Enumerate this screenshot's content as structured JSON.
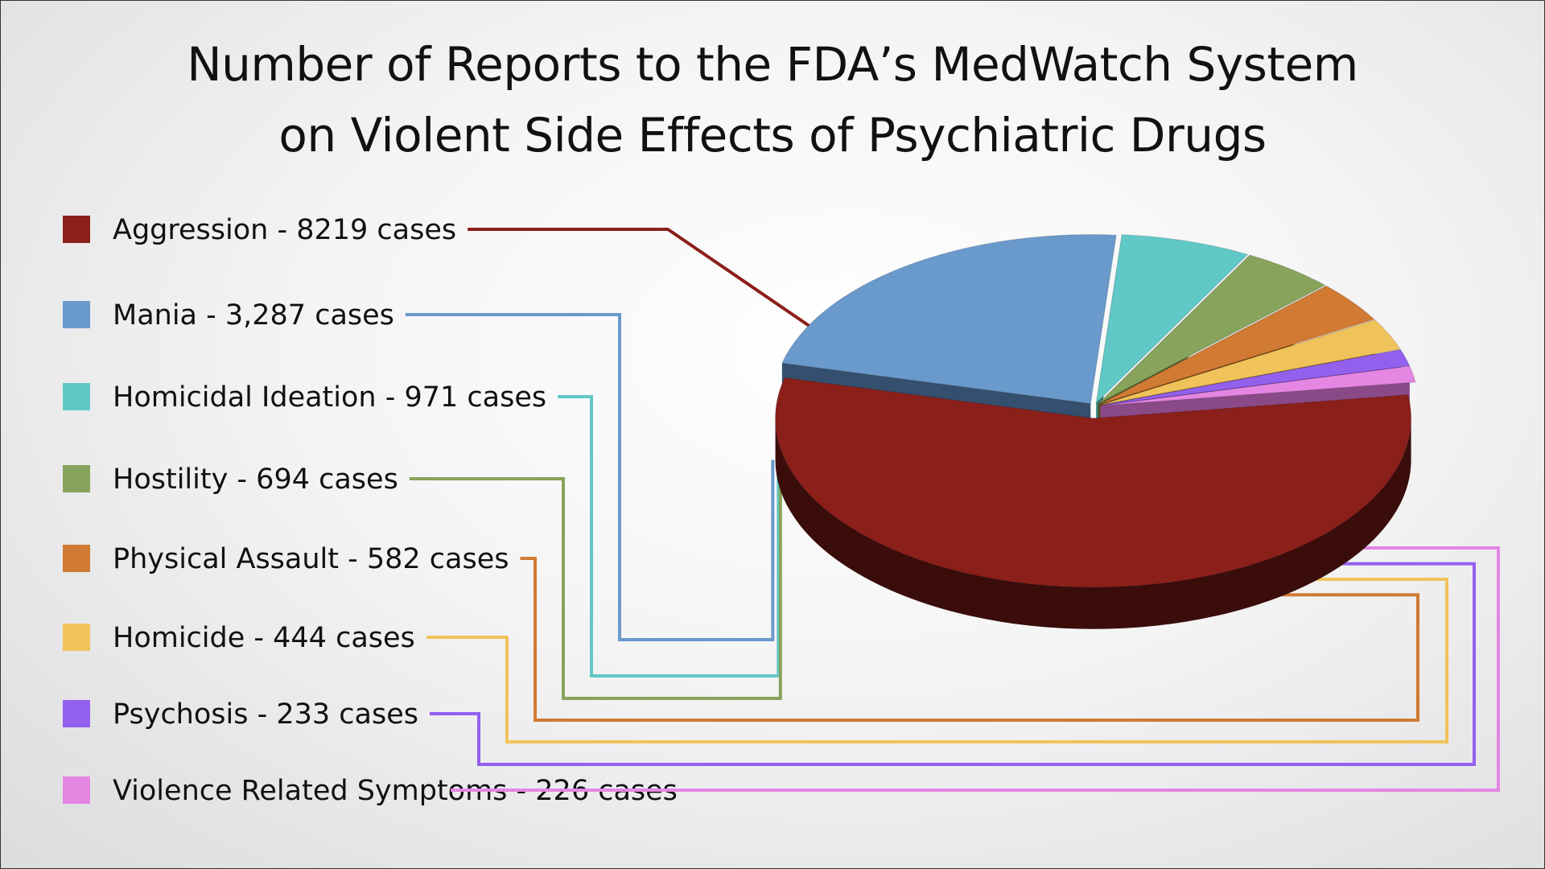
{
  "title_lines": [
    "Number of Reports to the FDA’s MedWatch System",
    "on Violent Side Effects of Psychiatric Drugs"
  ],
  "chart_data": {
    "type": "pie",
    "title": "Number of Reports to the FDA’s MedWatch System on Violent Side Effects of Psychiatric Drugs",
    "style": "3d-exploded",
    "legend_position": "left",
    "slices": [
      {
        "name": "Aggression",
        "value": 8219,
        "label": "Aggression - 8219 cases",
        "color": "#8B1F1A",
        "side_color": "#3a0d0b"
      },
      {
        "name": "Mania",
        "value": 3287,
        "label": "Mania - 3,287 cases",
        "color": "#6A99CB",
        "side_color": "#34506e"
      },
      {
        "name": "Homicidal Ideation",
        "value": 971,
        "label": "Homicidal Ideation - 971 cases",
        "color": "#60C8C6",
        "side_color": "#2f7a78"
      },
      {
        "name": "Hostility",
        "value": 694,
        "label": "Hostility - 694 cases",
        "color": "#87A35C",
        "side_color": "#4a5c30"
      },
      {
        "name": "Physical Assault",
        "value": 582,
        "label": "Physical Assault - 582 cases",
        "color": "#D07A33",
        "side_color": "#6e3e15"
      },
      {
        "name": "Homicide",
        "value": 444,
        "label": "Homicide - 444 cases",
        "color": "#F0C35A",
        "side_color": "#8a6a22"
      },
      {
        "name": "Psychosis",
        "value": 233,
        "label": "Psychosis - 233 cases",
        "color": "#9360EE",
        "side_color": "#4f2f8a"
      },
      {
        "name": "Violence Related Symptoms",
        "value": 226,
        "label": "Violence Related Symptoms - 226 cases",
        "color": "#E486E2",
        "side_color": "#8a4a88"
      }
    ]
  }
}
